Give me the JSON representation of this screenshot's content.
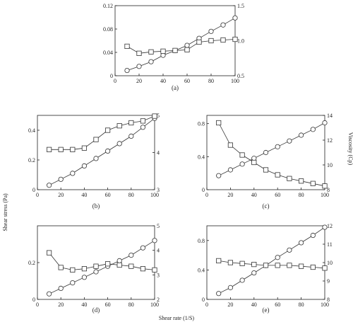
{
  "figure": {
    "left_axis_title": "Shear stress (Pa)",
    "right_axis_title": "Viscosity (Cp)",
    "bottom_axis_title": "Shear rate (1/S)"
  },
  "chart_data": [
    {
      "type": "line",
      "label": "(a)",
      "x": [
        10,
        20,
        30,
        40,
        50,
        60,
        70,
        80,
        90,
        100
      ],
      "left_ylim": [
        0,
        0.12
      ],
      "right_ylim": [
        0.5,
        1.5
      ],
      "xlim": [
        0,
        100
      ],
      "xticks": [
        "0",
        "20",
        "40",
        "60",
        "80",
        "100"
      ],
      "left_ticks": [
        "0",
        "0.04",
        "0.08",
        "0.12"
      ],
      "right_ticks": [
        "0.5",
        "1.0",
        "1.5"
      ],
      "series": [
        {
          "marker": "circle",
          "axis": "left",
          "values": [
            0.009,
            0.016,
            0.024,
            0.035,
            0.043,
            0.052,
            0.064,
            0.076,
            0.087,
            0.099
          ]
        },
        {
          "marker": "square",
          "axis": "right",
          "values": [
            0.92,
            0.82,
            0.84,
            0.85,
            0.86,
            0.87,
            0.98,
            1.0,
            1.01,
            1.02
          ]
        }
      ]
    },
    {
      "type": "line",
      "label": "(b)",
      "x": [
        10,
        20,
        30,
        40,
        50,
        60,
        70,
        80,
        90,
        100
      ],
      "left_ylim": [
        0,
        0.5
      ],
      "right_ylim": [
        3,
        5
      ],
      "xlim": [
        0,
        100
      ],
      "xticks": [
        "0",
        "20",
        "40",
        "60",
        "80",
        "100"
      ],
      "left_ticks": [
        "0",
        "0.2",
        "0.4"
      ],
      "right_ticks": [
        "3",
        "4",
        "5"
      ],
      "series": [
        {
          "marker": "circle",
          "axis": "left",
          "values": [
            0.03,
            0.07,
            0.11,
            0.16,
            0.21,
            0.26,
            0.31,
            0.36,
            0.42,
            0.48
          ]
        },
        {
          "marker": "square",
          "axis": "right",
          "values": [
            4.08,
            4.08,
            4.08,
            4.12,
            4.35,
            4.6,
            4.72,
            4.8,
            4.85,
            4.98
          ]
        }
      ]
    },
    {
      "type": "line",
      "label": "(c)",
      "x": [
        10,
        20,
        30,
        40,
        50,
        60,
        70,
        80,
        90,
        100
      ],
      "left_ylim": [
        0,
        0.9
      ],
      "right_ylim": [
        8,
        14
      ],
      "xlim": [
        0,
        100
      ],
      "xticks": [
        "0",
        "20",
        "40",
        "60",
        "80",
        "100"
      ],
      "left_ticks": [
        "0",
        "0.4",
        "0.8"
      ],
      "right_ticks": [
        "8",
        "10",
        "12",
        "14"
      ],
      "series": [
        {
          "marker": "circle",
          "axis": "left",
          "values": [
            0.17,
            0.24,
            0.31,
            0.38,
            0.45,
            0.52,
            0.59,
            0.66,
            0.73,
            0.81
          ]
        },
        {
          "marker": "square",
          "axis": "right",
          "values": [
            13.4,
            11.6,
            10.8,
            10.2,
            9.6,
            9.2,
            8.9,
            8.7,
            8.5,
            8.3
          ]
        }
      ]
    },
    {
      "type": "line",
      "label": "(d)",
      "x": [
        10,
        20,
        30,
        40,
        50,
        60,
        70,
        80,
        90,
        100
      ],
      "left_ylim": [
        0,
        0.4
      ],
      "right_ylim": [
        2,
        5
      ],
      "xlim": [
        0,
        100
      ],
      "xticks": [
        "0",
        "20",
        "40",
        "60",
        "80",
        "100"
      ],
      "left_ticks": [
        "0",
        "0.2"
      ],
      "right_ticks": [
        "2",
        "3",
        "4",
        "5"
      ],
      "series": [
        {
          "marker": "circle",
          "axis": "left",
          "values": [
            0.03,
            0.06,
            0.09,
            0.12,
            0.15,
            0.18,
            0.21,
            0.24,
            0.28,
            0.32
          ]
        },
        {
          "marker": "square",
          "axis": "right",
          "values": [
            3.9,
            3.3,
            3.2,
            3.25,
            3.35,
            3.45,
            3.4,
            3.35,
            3.25,
            3.2
          ]
        }
      ]
    },
    {
      "type": "line",
      "label": "(e)",
      "x": [
        10,
        20,
        30,
        40,
        50,
        60,
        70,
        80,
        90,
        100
      ],
      "left_ylim": [
        0,
        1.0
      ],
      "right_ylim": [
        8,
        12
      ],
      "xlim": [
        0,
        100
      ],
      "xticks": [
        "0",
        "20",
        "40",
        "60",
        "80",
        "100"
      ],
      "left_ticks": [
        "0",
        "0.4",
        "0.8"
      ],
      "right_ticks": [
        "8",
        "9",
        "10",
        "11",
        "12"
      ],
      "series": [
        {
          "marker": "circle",
          "axis": "left",
          "values": [
            0.08,
            0.16,
            0.26,
            0.36,
            0.46,
            0.57,
            0.67,
            0.77,
            0.87,
            0.98
          ]
        },
        {
          "marker": "square",
          "axis": "right",
          "values": [
            10.1,
            10.0,
            9.95,
            9.9,
            9.85,
            9.85,
            9.85,
            9.8,
            9.75,
            9.7
          ]
        }
      ]
    }
  ]
}
